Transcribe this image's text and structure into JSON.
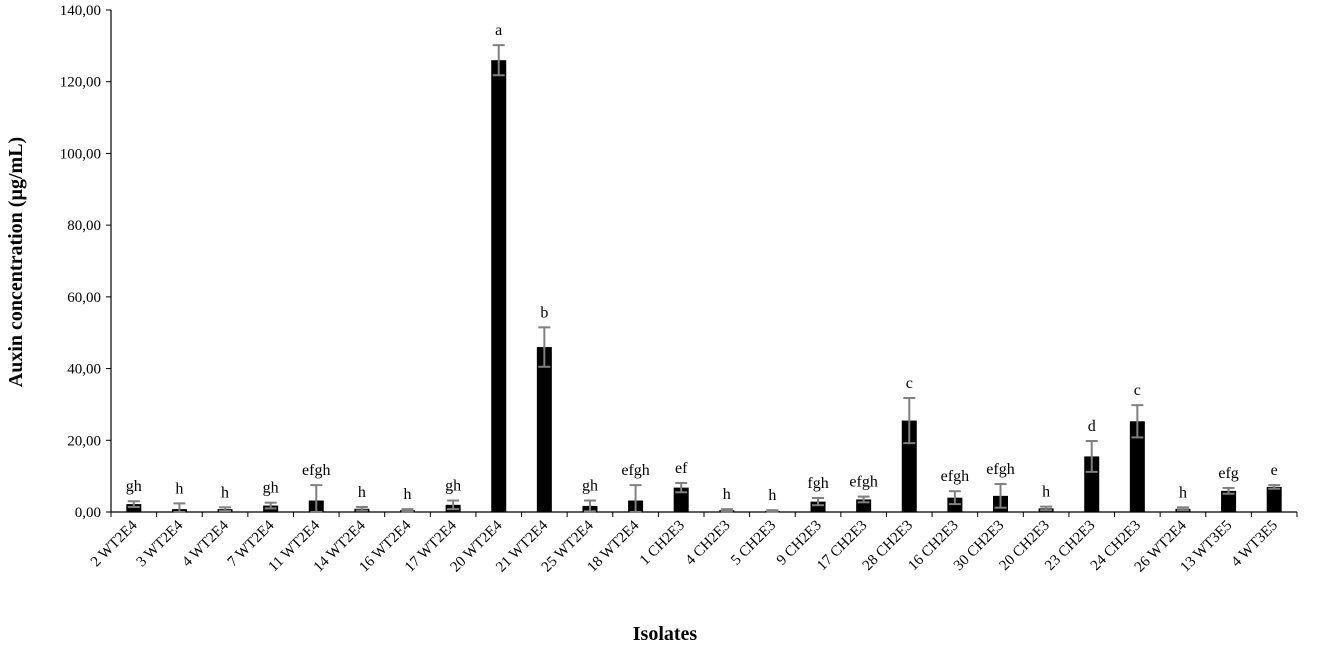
{
  "chart_data": {
    "type": "bar",
    "title": "",
    "xlabel": "Isolates",
    "ylabel": "Auxin concentration (µg/mL)",
    "ylim": [
      0,
      140
    ],
    "y_ticks": [
      "0,00",
      "20,00",
      "40,00",
      "60,00",
      "80,00",
      "100,00",
      "120,00",
      "140,00"
    ],
    "grid": false,
    "legend": "none",
    "bar_color": "#000000",
    "error_bar_color": "#808080",
    "categories": [
      "2 WT2E4",
      "3 WT2E4",
      "4 WT2E4",
      "7 WT2E4",
      "11 WT2E4",
      "14 WT2E4",
      "16 WT2E4",
      "17 WT2E4",
      "20 WT2E4",
      "21 WT2E4",
      "25 WT2E4",
      "18 WT2E4",
      "1 CH2E3",
      "4 CH2E3",
      "5 CH2E3",
      "9 CH2E3",
      "17 CH2E3",
      "28 CH2E3",
      "16 CH2E3",
      "30 CH2E3",
      "20 CH2E3",
      "23 CH2E3",
      "24 CH2E3",
      "26 WT2E4",
      "13 WT3E5",
      "4 WT3E5"
    ],
    "values": [
      2.2,
      0.8,
      0.8,
      1.8,
      3.2,
      0.9,
      0.5,
      2.0,
      126.0,
      46.0,
      1.7,
      3.2,
      6.8,
      0.5,
      0.3,
      2.9,
      3.5,
      25.5,
      4.0,
      4.5,
      1.0,
      15.5,
      25.3,
      0.9,
      5.9,
      7.0
    ],
    "errors": [
      0.8,
      1.6,
      0.5,
      0.8,
      4.3,
      0.5,
      0.3,
      1.2,
      4.2,
      5.5,
      1.5,
      4.3,
      1.3,
      0.3,
      0.2,
      1.0,
      0.8,
      6.3,
      1.8,
      3.3,
      0.5,
      4.3,
      4.5,
      0.4,
      0.8,
      0.5
    ],
    "significance": [
      "gh",
      "h",
      "h",
      "gh",
      "efgh",
      "h",
      "h",
      "gh",
      "a",
      "b",
      "gh",
      "efgh",
      "ef",
      "h",
      "h",
      "fgh",
      "efgh",
      "c",
      "efgh",
      "efgh",
      "h",
      "d",
      "c",
      "h",
      "efg",
      "e"
    ]
  }
}
